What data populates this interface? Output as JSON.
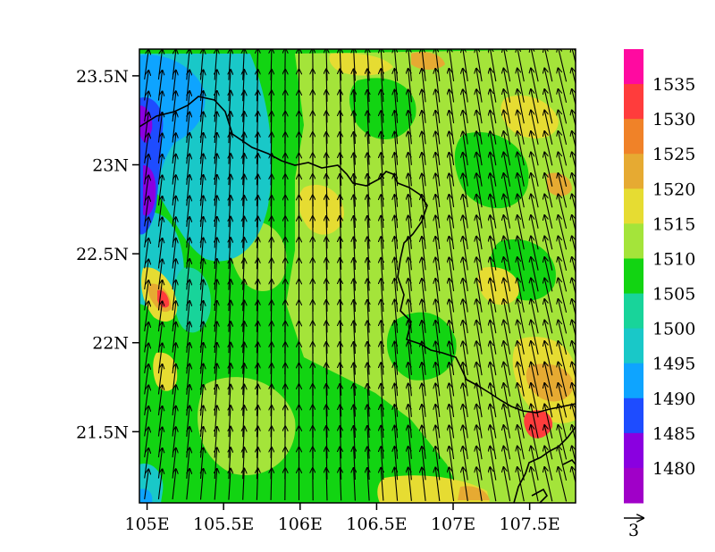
{
  "map": {
    "lat_axis": {
      "labels": [
        "23.5N",
        "23N",
        "22.5N",
        "22N",
        "21.5N"
      ],
      "values": [
        23.5,
        23.0,
        22.5,
        22.0,
        21.5
      ],
      "range": [
        21.1,
        23.65
      ]
    },
    "lon_axis": {
      "labels": [
        "105E",
        "105.5E",
        "106E",
        "106.5E",
        "107E",
        "107.5E"
      ],
      "values": [
        105.0,
        105.5,
        106.0,
        106.5,
        107.0,
        107.5
      ],
      "range": [
        104.95,
        107.8
      ]
    },
    "field_colors": {
      "purple": "#8a00e0",
      "blue": "#1e4cff",
      "light_blue": "#0ea4ff",
      "cyan": "#19c8c8",
      "teal": "#18d49a",
      "green": "#12d412",
      "yellow_green": "#a4e43a",
      "yellow": "#e6dc32",
      "orange": "#e6aa32",
      "red": "#ff3c3c",
      "magenta": "#ff0aa0"
    },
    "wind_vector_direction": "north-northwest",
    "border_color": "#000000"
  },
  "colorbar": {
    "levels": [
      "1535",
      "1530",
      "1525",
      "1520",
      "1515",
      "1510",
      "1505",
      "1500",
      "1495",
      "1490",
      "1485",
      "1480"
    ],
    "colors": [
      "#ff0aa0",
      "#ff3c3c",
      "#f08228",
      "#e6aa32",
      "#e6dc32",
      "#a4e43a",
      "#12d412",
      "#18d49a",
      "#19c8c8",
      "#0ea4ff",
      "#1e4cff",
      "#8a00e0",
      "#a000c8"
    ]
  },
  "vector_reference": {
    "label": "3"
  }
}
